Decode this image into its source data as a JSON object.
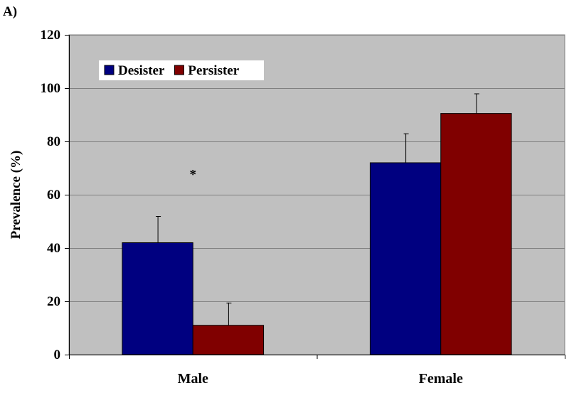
{
  "panel_label": "A)",
  "colors": {
    "plot_background": "#c0c0c0",
    "gridline": "#808080",
    "desister": "#000080",
    "persister": "#800000"
  },
  "chart_data": {
    "type": "bar",
    "categories": [
      "Male",
      "Female"
    ],
    "series": [
      {
        "name": "Desister",
        "values": [
          42,
          72
        ],
        "errors": [
          10,
          11
        ]
      },
      {
        "name": "Persister",
        "values": [
          11,
          90.5
        ],
        "errors": [
          8.5,
          7.5
        ]
      }
    ],
    "ylabel": "Prevalence (%)",
    "xlabel": "",
    "ylim": [
      0,
      120
    ],
    "yticks": [
      0,
      20,
      40,
      60,
      80,
      100,
      120
    ],
    "grid": true,
    "legend_position": "top-left",
    "annotations": [
      {
        "text": "*",
        "category": "Male",
        "y": 66
      }
    ]
  }
}
